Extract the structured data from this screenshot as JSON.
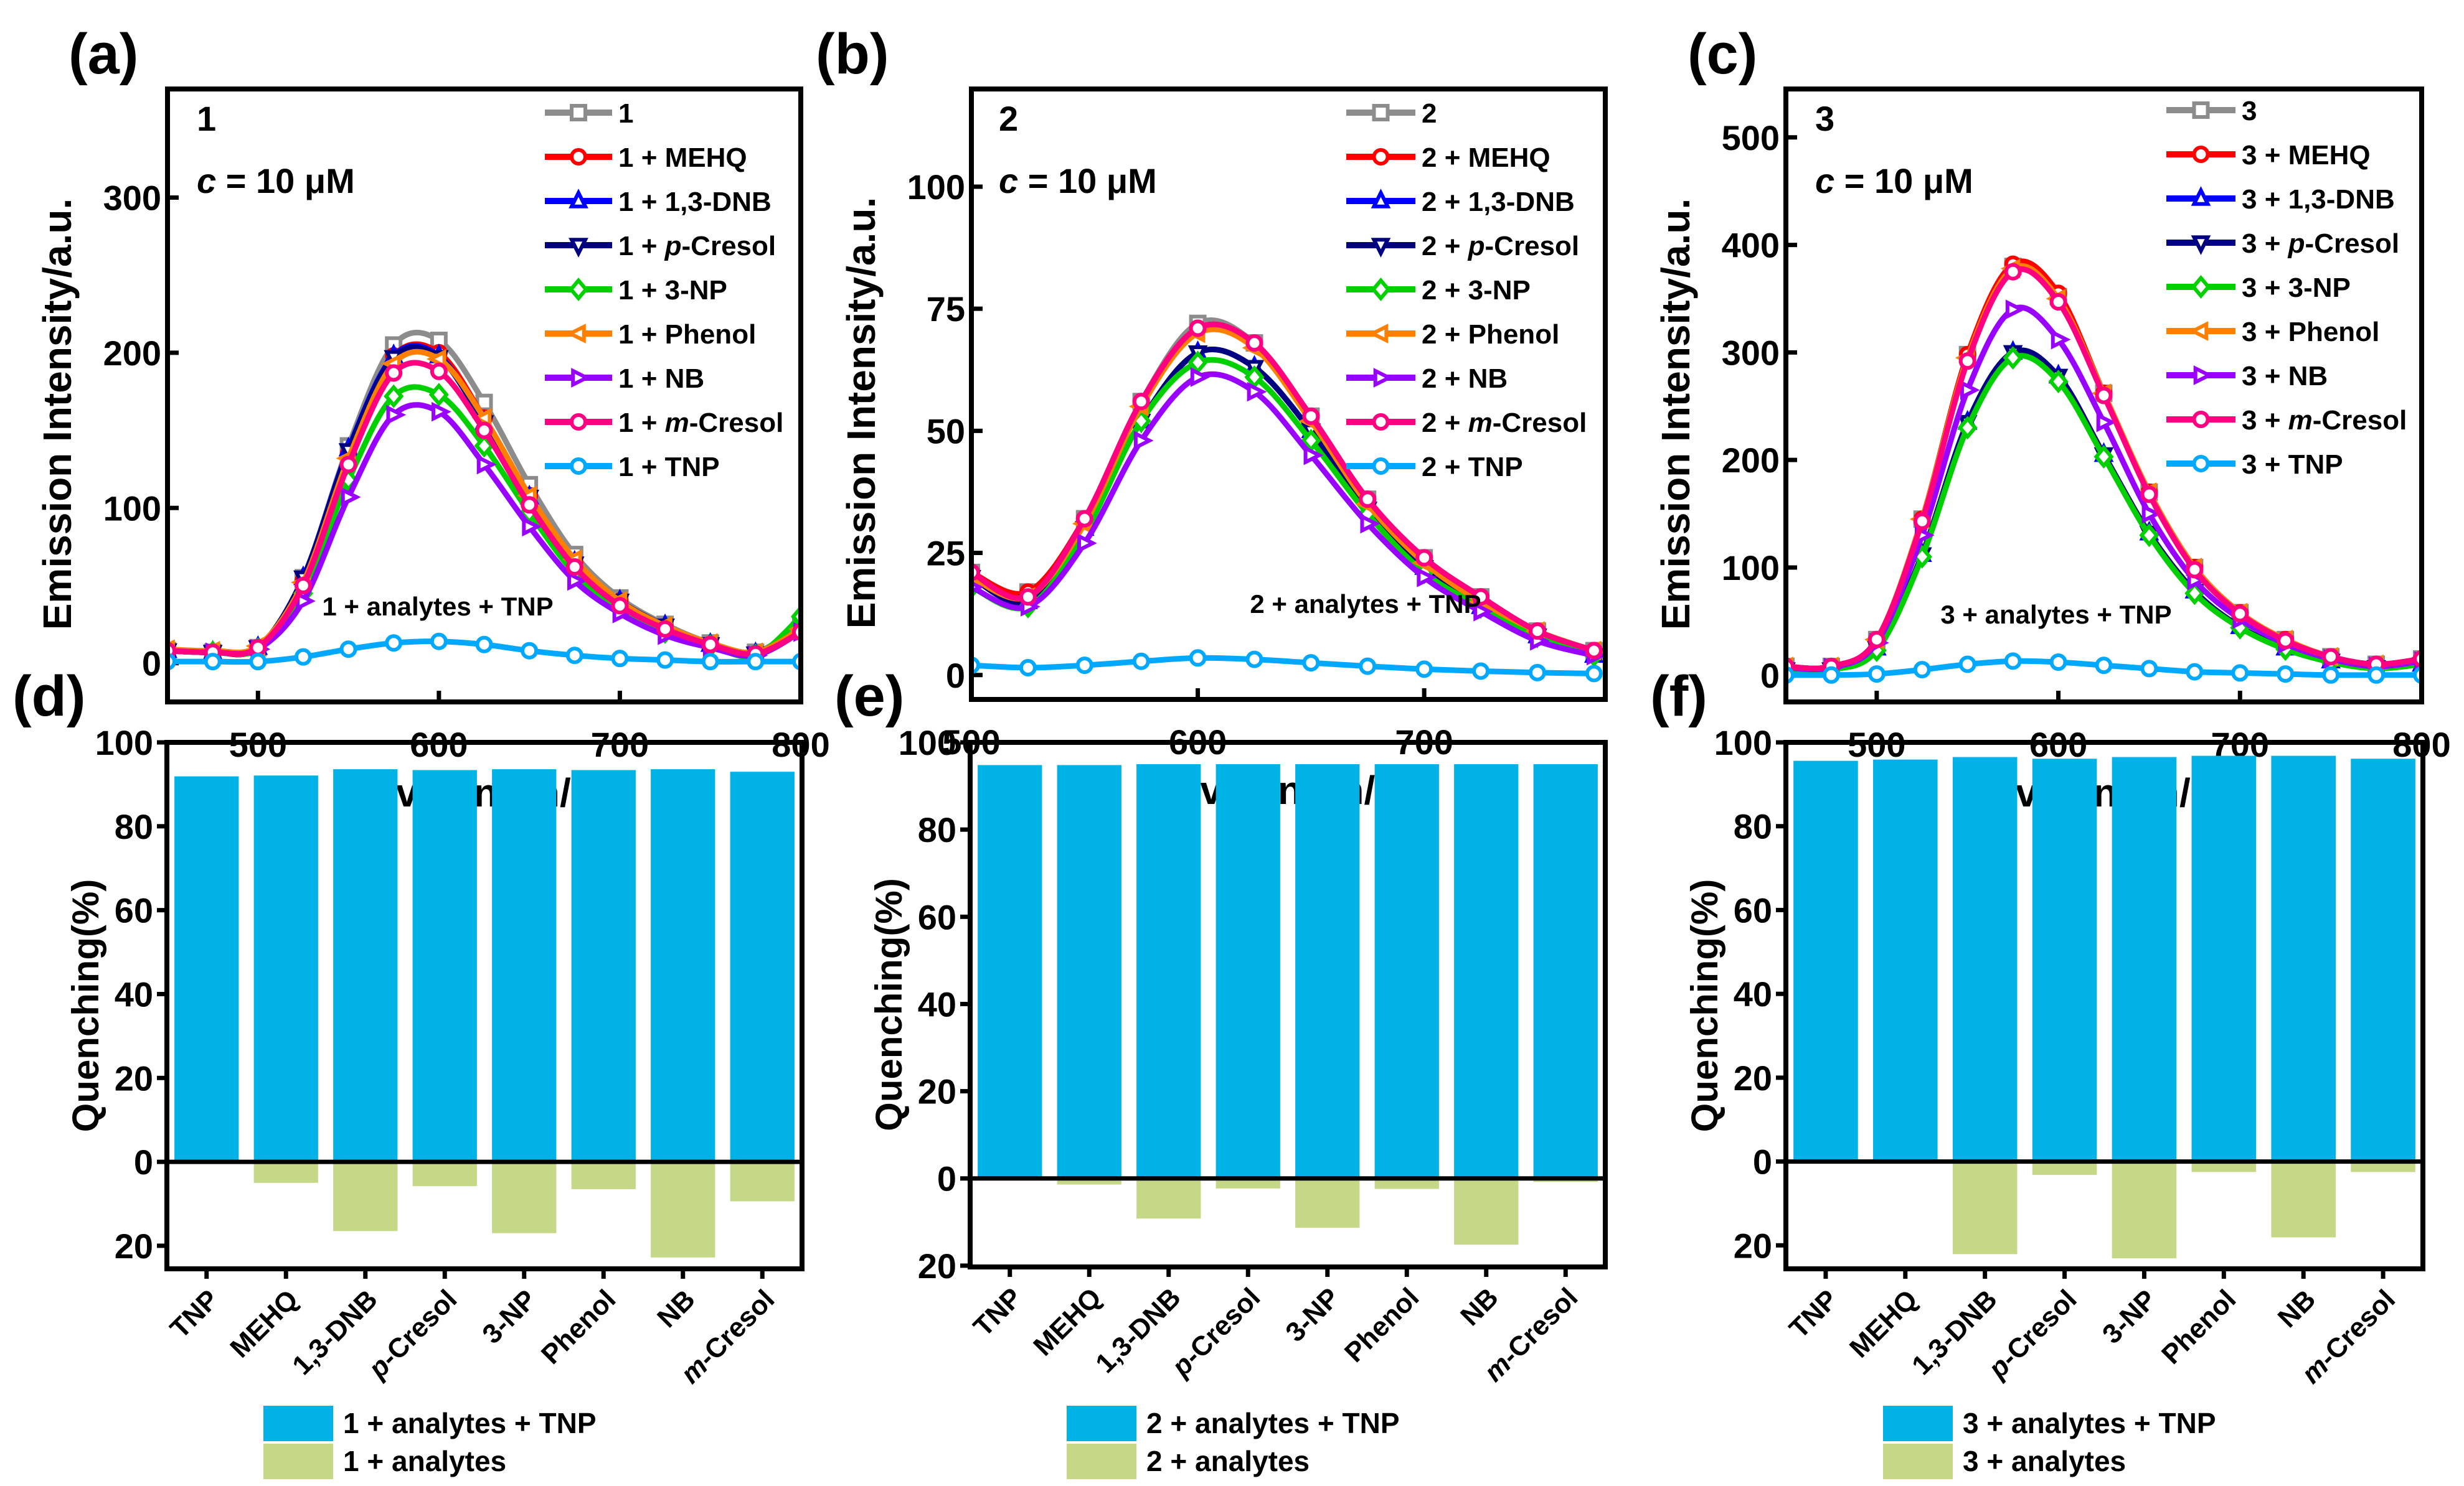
{
  "chart_data": [
    {
      "panel_label": "(a)",
      "type": "line",
      "compound": "1",
      "concentration": "c = 10 μM",
      "annotation": "1 + analytes + TNP",
      "xlabel": "Wavelength/nm",
      "ylabel": "Emission Intensity/a.u.",
      "xlim": [
        450,
        800
      ],
      "ylim": [
        -25,
        370
      ],
      "xticks": [
        500,
        600,
        700,
        800
      ],
      "yticks": [
        0,
        100,
        200,
        300
      ],
      "grid": false,
      "legend_position": "top-right",
      "x": [
        450,
        475,
        500,
        525,
        550,
        575,
        600,
        625,
        650,
        675,
        700,
        725,
        750,
        775,
        800
      ],
      "series": [
        {
          "name": "1",
          "color": "#8c8c8c",
          "marker": "square",
          "values": [
            8,
            7,
            10,
            55,
            140,
            205,
            208,
            168,
            115,
            70,
            42,
            25,
            13,
            7,
            25
          ]
        },
        {
          "name": "1 + MEHQ",
          "color": "#ff0000",
          "marker": "circle",
          "values": [
            8,
            7,
            10,
            53,
            135,
            198,
            200,
            158,
            108,
            65,
            40,
            23,
            12,
            6,
            22
          ]
        },
        {
          "name": "1 + 1,3-DNB",
          "color": "#0000ff",
          "marker": "triangle-up",
          "values": [
            8,
            7,
            10,
            55,
            138,
            198,
            198,
            155,
            107,
            65,
            40,
            24,
            12,
            6,
            22
          ]
        },
        {
          "name": "1 + p-Cresol",
          "color": "#000080",
          "marker": "triangle-down",
          "values": [
            8,
            7,
            10,
            55,
            137,
            197,
            197,
            155,
            107,
            64,
            40,
            24,
            12,
            6,
            22
          ]
        },
        {
          "name": "1 + 3-NP",
          "color": "#00d000",
          "marker": "diamond",
          "values": [
            8,
            7,
            9,
            45,
            118,
            172,
            173,
            140,
            97,
            58,
            36,
            20,
            11,
            5,
            30
          ]
        },
        {
          "name": "1 + Phenol",
          "color": "#ff8000",
          "marker": "triangle-left",
          "values": [
            9,
            8,
            11,
            52,
            132,
            193,
            196,
            158,
            108,
            67,
            40,
            24,
            13,
            7,
            22
          ]
        },
        {
          "name": "1 + NB",
          "color": "#9900ff",
          "marker": "triangle-right",
          "values": [
            8,
            7,
            9,
            40,
            107,
            160,
            162,
            128,
            88,
            53,
            32,
            18,
            10,
            5,
            20
          ]
        },
        {
          "name": "1 + m-Cresol",
          "color": "#ff0080",
          "marker": "circle",
          "values": [
            8,
            7,
            10,
            50,
            128,
            187,
            188,
            150,
            102,
            62,
            37,
            22,
            12,
            6,
            20
          ]
        },
        {
          "name": "1 + TNP",
          "color": "#00a8ff",
          "marker": "circle",
          "values": [
            1,
            1,
            1,
            4,
            9,
            13,
            14,
            12,
            8,
            5,
            3,
            2,
            1,
            1,
            1
          ]
        }
      ]
    },
    {
      "panel_label": "(b)",
      "type": "line",
      "compound": "2",
      "concentration": "c = 10 μM",
      "annotation": "2 + analytes + TNP",
      "xlabel": "Wavelength/nm",
      "ylabel": "Emission Intensity/a.u.",
      "xlim": [
        500,
        780
      ],
      "ylim": [
        -5,
        120
      ],
      "xticks": [
        500,
        600,
        700
      ],
      "yticks": [
        0,
        25,
        50,
        75,
        100
      ],
      "grid": false,
      "legend_position": "top-right",
      "x": [
        500,
        525,
        550,
        575,
        600,
        625,
        650,
        675,
        700,
        725,
        750,
        775
      ],
      "series": [
        {
          "name": "2",
          "color": "#8c8c8c",
          "marker": "square",
          "values": [
            21,
            17,
            32,
            56,
            72,
            68,
            53,
            36,
            24,
            16,
            9,
            5
          ]
        },
        {
          "name": "2 + MEHQ",
          "color": "#ff0000",
          "marker": "circle",
          "values": [
            21,
            17,
            32,
            56,
            71,
            68,
            53,
            36,
            24,
            16,
            9,
            5
          ]
        },
        {
          "name": "2 + 1,3-DNB",
          "color": "#0000ff",
          "marker": "triangle-up",
          "values": [
            20,
            15,
            30,
            52,
            66,
            63,
            50,
            34,
            22,
            14,
            8,
            4
          ]
        },
        {
          "name": "2 + p-Cresol",
          "color": "#000080",
          "marker": "triangle-down",
          "values": [
            20,
            15,
            30,
            52,
            66,
            63,
            50,
            34,
            22,
            14,
            8,
            4
          ]
        },
        {
          "name": "2 + 3-NP",
          "color": "#00d000",
          "marker": "diamond",
          "values": [
            18,
            14,
            29,
            52,
            64,
            61,
            48,
            33,
            21,
            14,
            8,
            4
          ]
        },
        {
          "name": "2 + Phenol",
          "color": "#ff8000",
          "marker": "triangle-left",
          "values": [
            20,
            16,
            31,
            55,
            70,
            67,
            52,
            35,
            23,
            15,
            9,
            5
          ]
        },
        {
          "name": "2 + NB",
          "color": "#9900ff",
          "marker": "triangle-right",
          "values": [
            18,
            14,
            27,
            48,
            61,
            58,
            45,
            31,
            20,
            13,
            7,
            4
          ]
        },
        {
          "name": "2 + m-Cresol",
          "color": "#ff0080",
          "marker": "circle",
          "values": [
            21,
            16,
            32,
            56,
            71,
            68,
            53,
            36,
            24,
            16,
            9,
            5
          ]
        },
        {
          "name": "2 + TNP",
          "color": "#00a8ff",
          "marker": "circle",
          "values": [
            2,
            1.5,
            2,
            2.8,
            3.5,
            3.2,
            2.5,
            1.8,
            1.2,
            0.8,
            0.5,
            0.3
          ]
        }
      ]
    },
    {
      "panel_label": "(c)",
      "type": "line",
      "compound": "3",
      "concentration": "c = 10 μM",
      "annotation": "3 + analytes + TNP",
      "xlabel": "Wavelength/nm",
      "ylabel": "Emission Intensity/a.u.",
      "xlim": [
        450,
        800
      ],
      "ylim": [
        -25,
        545
      ],
      "xticks": [
        500,
        600,
        700,
        800
      ],
      "yticks": [
        0,
        100,
        200,
        300,
        400,
        500
      ],
      "grid": false,
      "legend_position": "top-right",
      "x": [
        450,
        475,
        500,
        525,
        550,
        575,
        600,
        625,
        650,
        675,
        700,
        725,
        750,
        775,
        800
      ],
      "series": [
        {
          "name": "3",
          "color": "#8c8c8c",
          "marker": "square",
          "values": [
            8,
            8,
            33,
            145,
            298,
            380,
            352,
            262,
            170,
            100,
            58,
            33,
            17,
            10,
            15
          ]
        },
        {
          "name": "3 + MEHQ",
          "color": "#ff0000",
          "marker": "circle",
          "values": [
            8,
            8,
            33,
            145,
            298,
            382,
            355,
            262,
            170,
            100,
            58,
            33,
            17,
            10,
            15
          ]
        },
        {
          "name": "3 + 1,3-DNB",
          "color": "#0000ff",
          "marker": "triangle-up",
          "values": [
            5,
            5,
            25,
            112,
            235,
            300,
            278,
            205,
            132,
            78,
            45,
            25,
            13,
            7,
            10
          ]
        },
        {
          "name": "3 + p-Cresol",
          "color": "#000080",
          "marker": "triangle-down",
          "values": [
            5,
            5,
            25,
            112,
            235,
            300,
            278,
            205,
            132,
            78,
            45,
            25,
            13,
            7,
            10
          ]
        },
        {
          "name": "3 + 3-NP",
          "color": "#00d000",
          "marker": "diamond",
          "values": [
            5,
            5,
            23,
            110,
            230,
            295,
            273,
            203,
            130,
            76,
            44,
            24,
            12,
            6,
            10
          ]
        },
        {
          "name": "3 + Phenol",
          "color": "#ff8000",
          "marker": "triangle-left",
          "values": [
            8,
            8,
            33,
            145,
            295,
            378,
            350,
            262,
            170,
            100,
            58,
            33,
            17,
            10,
            15
          ]
        },
        {
          "name": "3 + NB",
          "color": "#9900ff",
          "marker": "triangle-right",
          "values": [
            7,
            7,
            30,
            130,
            265,
            340,
            312,
            235,
            150,
            88,
            52,
            29,
            15,
            8,
            13
          ]
        },
        {
          "name": "3 + m-Cresol",
          "color": "#ff0080",
          "marker": "circle",
          "values": [
            8,
            8,
            33,
            143,
            292,
            375,
            347,
            260,
            168,
            98,
            57,
            32,
            17,
            10,
            15
          ]
        },
        {
          "name": "3 + TNP",
          "color": "#00a8ff",
          "marker": "circle",
          "values": [
            0,
            0,
            1,
            5,
            10,
            13,
            12,
            9,
            6,
            3,
            2,
            1,
            0,
            0,
            0
          ]
        }
      ]
    },
    {
      "panel_label": "(d)",
      "type": "bar",
      "ylabel": "Quenching(%)",
      "ylim": [
        -25.5,
        100
      ],
      "yticks": [
        100,
        80,
        60,
        40,
        20,
        0,
        -20
      ],
      "ytick_labels": [
        "100",
        "80",
        "60",
        "40",
        "20",
        "0",
        "20"
      ],
      "categories": [
        "TNP",
        "MEHQ",
        "1,3-DNB",
        "p-Cresol",
        "3-NP",
        "Phenol",
        "NB",
        "m-Cresol"
      ],
      "legend_position": "bottom",
      "series": [
        {
          "name": "1 + analytes + TNP",
          "color": "#00b2e6",
          "values": [
            91.9,
            92.1,
            93.6,
            93.4,
            93.6,
            93.4,
            93.6,
            93.0
          ]
        },
        {
          "name": "1 + analytes",
          "color": "#c4d888",
          "values": [
            0,
            -5.0,
            -16.5,
            -5.8,
            -17.0,
            -6.5,
            -22.8,
            -9.4
          ]
        }
      ]
    },
    {
      "panel_label": "(e)",
      "type": "bar",
      "ylabel": "Quenching(%)",
      "ylim": [
        -20.3,
        100
      ],
      "yticks": [
        100,
        80,
        60,
        40,
        20,
        0,
        -20
      ],
      "ytick_labels": [
        "100",
        "80",
        "60",
        "40",
        "20",
        "0",
        "20"
      ],
      "categories": [
        "TNP",
        "MEHQ",
        "1,3-DNB",
        "p-Cresol",
        "3-NP",
        "Phenol",
        "NB",
        "m-Cresol"
      ],
      "legend_position": "bottom",
      "series": [
        {
          "name": "2 + analytes + TNP",
          "color": "#00b2e6",
          "values": [
            94.8,
            94.8,
            95.0,
            95.0,
            95.0,
            95.0,
            95.0,
            95.0
          ]
        },
        {
          "name": "2 + analytes",
          "color": "#c4d888",
          "values": [
            0,
            -1.4,
            -9.2,
            -2.3,
            -11.3,
            -2.4,
            -15.2,
            -0.8
          ]
        }
      ]
    },
    {
      "panel_label": "(f)",
      "type": "bar",
      "ylabel": "Quenching(%)",
      "ylim": [
        -25.6,
        100
      ],
      "yticks": [
        100,
        80,
        60,
        40,
        20,
        0,
        -20
      ],
      "ytick_labels": [
        "100",
        "80",
        "60",
        "40",
        "20",
        "0",
        "20"
      ],
      "categories": [
        "TNP",
        "MEHQ",
        "1,3-DNB",
        "p-Cresol",
        "3-NP",
        "Phenol",
        "NB",
        "m-Cresol"
      ],
      "legend_position": "bottom",
      "series": [
        {
          "name": "3 + analytes + TNP",
          "color": "#00b2e6",
          "values": [
            95.6,
            95.9,
            96.5,
            96.1,
            96.5,
            96.8,
            96.8,
            96.1
          ]
        },
        {
          "name": "3 + analytes",
          "color": "#c4d888",
          "values": [
            0,
            0,
            -22.1,
            -3.2,
            -23.1,
            -2.5,
            -18.1,
            -2.5
          ]
        }
      ]
    }
  ]
}
